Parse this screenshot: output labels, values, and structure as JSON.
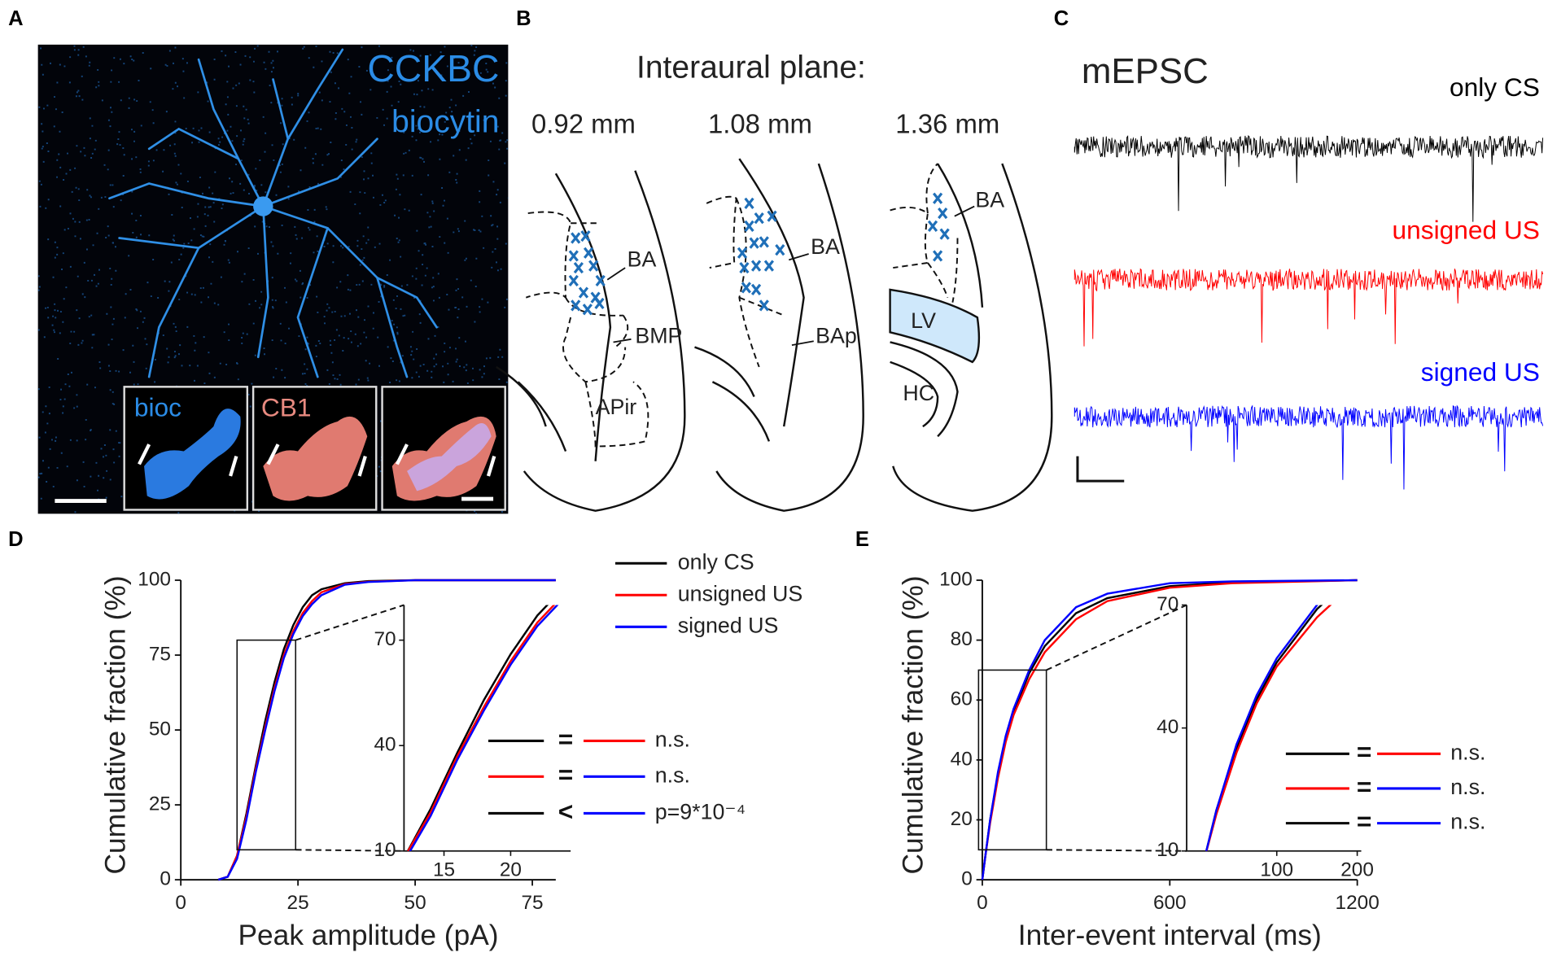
{
  "panel_labels": [
    "A",
    "B",
    "C",
    "D",
    "E"
  ],
  "panel_a": {
    "title": "CCKBC",
    "subtitle": "biocytin",
    "insets": [
      "bioc",
      "CB1"
    ]
  },
  "panel_b": {
    "title": "Interaural plane:",
    "sections": [
      {
        "label": "0.92 mm",
        "regions": [
          "BA",
          "BMP",
          "APir"
        ]
      },
      {
        "label": "1.08 mm",
        "regions": [
          "BA",
          "BAp"
        ]
      },
      {
        "label": "1.36 mm",
        "regions": [
          "BA",
          "LV",
          "HC"
        ]
      }
    ]
  },
  "panel_c": {
    "title": "mEPSC",
    "traces": [
      {
        "name": "only CS",
        "color": "#000000"
      },
      {
        "name": "unsigned US",
        "color": "#ff0000"
      },
      {
        "name": "signed US",
        "color": "#0000ff"
      }
    ]
  },
  "chart_data": [
    {
      "type": "line",
      "x_label": "Peak amplitude (pA)",
      "y_label": "Cumulative fraction (%)",
      "x": [
        8,
        10,
        12,
        14,
        16,
        18,
        20,
        22,
        24,
        26,
        28,
        30,
        35,
        40,
        50,
        60,
        80
      ],
      "series": [
        {
          "name": "only CS",
          "color": "#000000",
          "values": [
            0,
            1,
            8,
            22,
            38,
            53,
            66,
            77,
            85,
            91,
            95,
            97,
            99,
            99.7,
            100,
            100,
            100
          ]
        },
        {
          "name": "unsigned US",
          "color": "#ff0000",
          "values": [
            0,
            1,
            8,
            21,
            37,
            51,
            64,
            75,
            83,
            89,
            93,
            96,
            98.7,
            99.5,
            100,
            100,
            100
          ]
        },
        {
          "name": "signed US",
          "color": "#0000ff",
          "values": [
            0,
            1,
            7,
            20,
            36,
            50,
            63,
            74,
            82,
            88,
            92,
            95,
            98.5,
            99.4,
            100,
            100,
            100
          ]
        }
      ],
      "xlim": [
        0,
        80
      ],
      "xticks": [
        0,
        25,
        50,
        75
      ],
      "ylim": [
        0,
        100
      ],
      "yticks": [
        0,
        25,
        50,
        75,
        100
      ],
      "legend": "top right",
      "inset": {
        "xlim": [
          12,
          24.5
        ],
        "xticks": [
          15,
          20
        ],
        "ylim": [
          10,
          80
        ],
        "yticks": [
          10,
          40,
          70
        ]
      },
      "comparisons": [
        {
          "colors": [
            "#000000",
            "#ff0000"
          ],
          "sign": "=",
          "label": "n.s."
        },
        {
          "colors": [
            "#ff0000",
            "#0000ff"
          ],
          "sign": "=",
          "label": "n.s."
        },
        {
          "colors": [
            "#000000",
            "#0000ff"
          ],
          "sign": "<",
          "label": "p=9*10⁻⁴"
        }
      ]
    },
    {
      "type": "line",
      "x_label": "Inter-event interval (ms)",
      "y_label": "Cumulative fraction (%)",
      "x": [
        0,
        10,
        25,
        50,
        75,
        100,
        150,
        200,
        300,
        400,
        600,
        800,
        1200
      ],
      "series": [
        {
          "color": "#000000",
          "values": [
            0,
            8,
            20,
            35,
            47,
            56,
            69,
            78,
            89,
            94,
            98,
            99.3,
            100
          ]
        },
        {
          "color": "#ff0000",
          "values": [
            0,
            8,
            19,
            34,
            46,
            55,
            67,
            76,
            87,
            93,
            97.5,
            99,
            100
          ]
        },
        {
          "color": "#0000ff",
          "values": [
            0,
            8,
            20,
            36,
            48,
            57,
            70,
            80,
            91,
            95.5,
            99,
            99.6,
            100
          ]
        }
      ],
      "xlim": [
        0,
        1200
      ],
      "xticks": [
        0,
        600,
        1200
      ],
      "ylim": [
        0,
        100
      ],
      "yticks": [
        0,
        20,
        40,
        60,
        80,
        100
      ],
      "inset": {
        "xlim": [
          -12,
          205
        ],
        "xticks": [
          100,
          200
        ],
        "ylim": [
          10,
          70
        ],
        "yticks": [
          10,
          40,
          70
        ]
      },
      "comparisons": [
        {
          "colors": [
            "#000000",
            "#ff0000"
          ],
          "sign": "=",
          "label": "n.s."
        },
        {
          "colors": [
            "#ff0000",
            "#0000ff"
          ],
          "sign": "=",
          "label": "n.s."
        },
        {
          "colors": [
            "#000000",
            "#0000ff"
          ],
          "sign": "=",
          "label": "n.s."
        }
      ]
    }
  ]
}
